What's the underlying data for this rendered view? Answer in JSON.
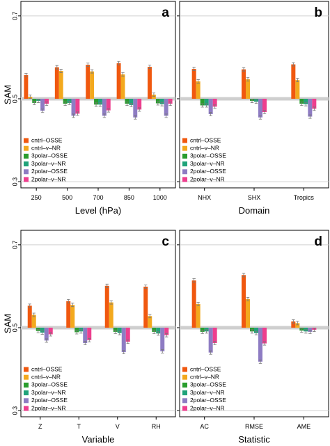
{
  "colors": {
    "cntrl-OSSE": "#F0580F",
    "cntrl-v-NR": "#F3A91E",
    "3polar-OSSE": "#2A9D2E",
    "3polar-v-NR": "#20A37A",
    "2polar-OSSE": "#8E7CC3",
    "2polar-v-NR": "#EE3E8E"
  },
  "y_axis_label": "SAM",
  "chart_data": [
    {
      "type": "bar",
      "panel": "a",
      "xlabel": "Level (hPa)",
      "ylabel": "SAM",
      "ylim": [
        0.3,
        0.7
      ],
      "yticks": [
        "0.3",
        "0.5",
        "0.7"
      ],
      "reference_line": 0.5,
      "categories": [
        "250",
        "500",
        "700",
        "850",
        "1000"
      ],
      "legend": "bottom-left",
      "series": [
        {
          "name": "cntrl–OSSE",
          "values": [
            0.557,
            0.576,
            0.582,
            0.586,
            0.577
          ]
        },
        {
          "name": "cntrl–v–NR",
          "values": [
            0.505,
            0.567,
            0.566,
            0.559,
            0.51
          ]
        },
        {
          "name": "3polar–OSSE",
          "values": [
            0.49,
            0.488,
            0.486,
            0.488,
            0.489
          ]
        },
        {
          "name": "3polar–v–NR",
          "values": [
            0.495,
            0.49,
            0.486,
            0.485,
            0.487
          ]
        },
        {
          "name": "2polar–OSSE",
          "values": [
            0.471,
            0.459,
            0.459,
            0.455,
            0.459
          ]
        },
        {
          "name": "2polar–v–NR",
          "values": [
            0.488,
            0.464,
            0.472,
            0.474,
            0.488
          ]
        }
      ]
    },
    {
      "type": "bar",
      "panel": "b",
      "xlabel": "Domain",
      "ylabel": "SAM",
      "ylim": [
        0.3,
        0.7
      ],
      "yticks": [
        "0.3",
        "0.5",
        "0.7"
      ],
      "reference_line": 0.5,
      "categories": [
        "NHX",
        "SHX",
        "Tropics"
      ],
      "legend": "bottom-left",
      "series": [
        {
          "name": "cntrl–OSSE",
          "values": [
            0.572,
            0.571,
            0.583
          ]
        },
        {
          "name": "cntrl–v–NR",
          "values": [
            0.542,
            0.547,
            0.545
          ]
        },
        {
          "name": "3polar–OSSE",
          "values": [
            0.484,
            0.495,
            0.488
          ]
        },
        {
          "name": "3polar–v–NR",
          "values": [
            0.484,
            0.493,
            0.487
          ]
        },
        {
          "name": "2polar–OSSE",
          "values": [
            0.463,
            0.455,
            0.457
          ]
        },
        {
          "name": "2polar–v–NR",
          "values": [
            0.481,
            0.468,
            0.476
          ]
        }
      ]
    },
    {
      "type": "bar",
      "panel": "c",
      "xlabel": "Variable",
      "ylabel": "SAM",
      "ylim": [
        0.3,
        0.7
      ],
      "yticks": [
        "0.3",
        "0.5",
        "0.7"
      ],
      "reference_line": 0.5,
      "categories": [
        "Z",
        "T",
        "V",
        "RH"
      ],
      "legend": "bottom-left",
      "series": [
        {
          "name": "cntrl–OSSE",
          "values": [
            0.553,
            0.564,
            0.601,
            0.599
          ]
        },
        {
          "name": "cntrl–v–NR",
          "values": [
            0.531,
            0.555,
            0.561,
            0.528
          ]
        },
        {
          "name": "3polar–OSSE",
          "values": [
            0.492,
            0.489,
            0.49,
            0.49
          ]
        },
        {
          "name": "3polar–v–NR",
          "values": [
            0.488,
            0.491,
            0.487,
            0.486
          ]
        },
        {
          "name": "2polar–OSSE",
          "values": [
            0.469,
            0.463,
            0.441,
            0.443
          ]
        },
        {
          "name": "2polar–v–NR",
          "values": [
            0.484,
            0.47,
            0.466,
            0.482
          ]
        }
      ]
    },
    {
      "type": "bar",
      "panel": "d",
      "xlabel": "Statistic",
      "ylabel": "SAM",
      "ylim": [
        0.3,
        0.7
      ],
      "yticks": [
        "0.3",
        "0.5",
        "0.7"
      ],
      "reference_line": 0.5,
      "categories": [
        "AC",
        "RMSE",
        "AME"
      ],
      "legend": "bottom-left",
      "series": [
        {
          "name": "cntrl–OSSE",
          "values": [
            0.614,
            0.627,
            0.515
          ]
        },
        {
          "name": "cntrl–v–NR",
          "values": [
            0.557,
            0.569,
            0.511
          ]
        },
        {
          "name": "3polar–OSSE",
          "values": [
            0.49,
            0.491,
            0.493
          ]
        },
        {
          "name": "3polar–v–NR",
          "values": [
            0.491,
            0.487,
            0.491
          ]
        },
        {
          "name": "2polar–OSSE",
          "values": [
            0.44,
            0.418,
            0.49
          ]
        },
        {
          "name": "2polar–v–NR",
          "values": [
            0.463,
            0.462,
            0.495
          ]
        }
      ]
    }
  ]
}
